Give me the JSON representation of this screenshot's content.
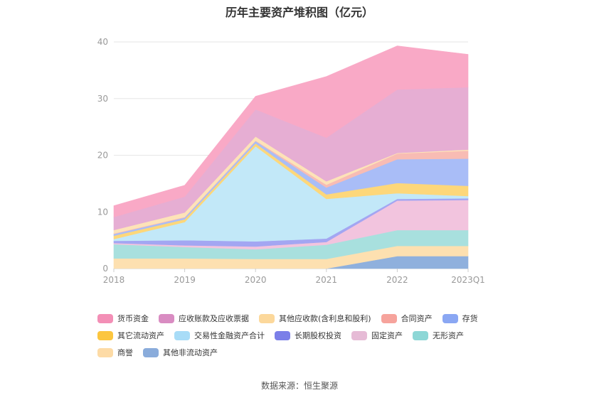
{
  "chart_data": {
    "type": "area",
    "stacked": true,
    "title": "历年主要资产堆积图（亿元）",
    "xlabel": "",
    "ylabel": "",
    "categories": [
      "2018",
      "2019",
      "2020",
      "2021",
      "2022",
      "2023Q1"
    ],
    "ylim": [
      0,
      40
    ],
    "yticks": [
      0,
      10,
      20,
      30,
      40
    ],
    "grid": true,
    "legend_position": "bottom",
    "series": [
      {
        "name": "其他非流动资产",
        "color": "#8fb0dd",
        "values": [
          0,
          0,
          0,
          0,
          2.2,
          2.2
        ]
      },
      {
        "name": "商誉",
        "color": "#fde0b0",
        "values": [
          1.8,
          1.8,
          1.7,
          1.7,
          1.8,
          1.8
        ]
      },
      {
        "name": "无形资产",
        "color": "#a8e0de",
        "values": [
          2.5,
          2.0,
          1.7,
          2.5,
          2.8,
          2.8
        ]
      },
      {
        "name": "固定资产",
        "color": "#f2c4de",
        "values": [
          0.2,
          0.3,
          0.5,
          0.5,
          5.2,
          5.3
        ]
      },
      {
        "name": "长期股权投资",
        "color": "#a3a6f2",
        "values": [
          0.4,
          0.9,
          0.9,
          0.6,
          0.3,
          0.3
        ]
      },
      {
        "name": "交易性金融资产合计",
        "color": "#c2e8f8",
        "values": [
          0.3,
          3.2,
          16.8,
          7.0,
          1.0,
          0.4
        ]
      },
      {
        "name": "其它流动资产",
        "color": "#fdd77a",
        "values": [
          0.6,
          0.5,
          0.5,
          0.8,
          1.8,
          1.8
        ]
      },
      {
        "name": "存货",
        "color": "#a9bdf7",
        "values": [
          0.3,
          0.3,
          0.4,
          1.2,
          4.2,
          4.8
        ]
      },
      {
        "name": "合同资产",
        "color": "#f8bcb4",
        "values": [
          0.1,
          0.1,
          0.1,
          0.5,
          1.0,
          1.4
        ]
      },
      {
        "name": "其他应收款(含利息和股利)",
        "color": "#fde3b8",
        "values": [
          0.6,
          0.8,
          0.7,
          0.6,
          0.1,
          0.2
        ]
      },
      {
        "name": "应收账款及应收票据",
        "color": "#e6aed3",
        "values": [
          2.3,
          2.8,
          4.8,
          7.7,
          11.2,
          11.0
        ]
      },
      {
        "name": "货币资金",
        "color": "#f9a9c6",
        "values": [
          2.0,
          2.0,
          2.3,
          10.8,
          7.7,
          5.8
        ]
      }
    ]
  },
  "legend": {
    "rows": [
      [
        {
          "label": "货币资金",
          "color": "#f38fb6"
        },
        {
          "label": "应收账款及应收票据",
          "color": "#d98cc2"
        },
        {
          "label": "其他应收款(含利息和股利)",
          "color": "#fcd89b"
        },
        {
          "label": "合同资产",
          "color": "#f6a39c"
        },
        {
          "label": "存货",
          "color": "#8aa7f3"
        }
      ],
      [
        {
          "label": "其它流动资产",
          "color": "#fcc63f"
        },
        {
          "label": "交易性金融资产合计",
          "color": "#a8dcf7"
        },
        {
          "label": "长期股权投资",
          "color": "#7b7fe8"
        },
        {
          "label": "固定资产",
          "color": "#e6bbd6"
        },
        {
          "label": "无形资产",
          "color": "#8dd7d6"
        }
      ],
      [
        {
          "label": "商誉",
          "color": "#fddba6"
        },
        {
          "label": "其他非流动资产",
          "color": "#8aacdb"
        }
      ]
    ]
  },
  "source": "数据来源：恒生聚源"
}
